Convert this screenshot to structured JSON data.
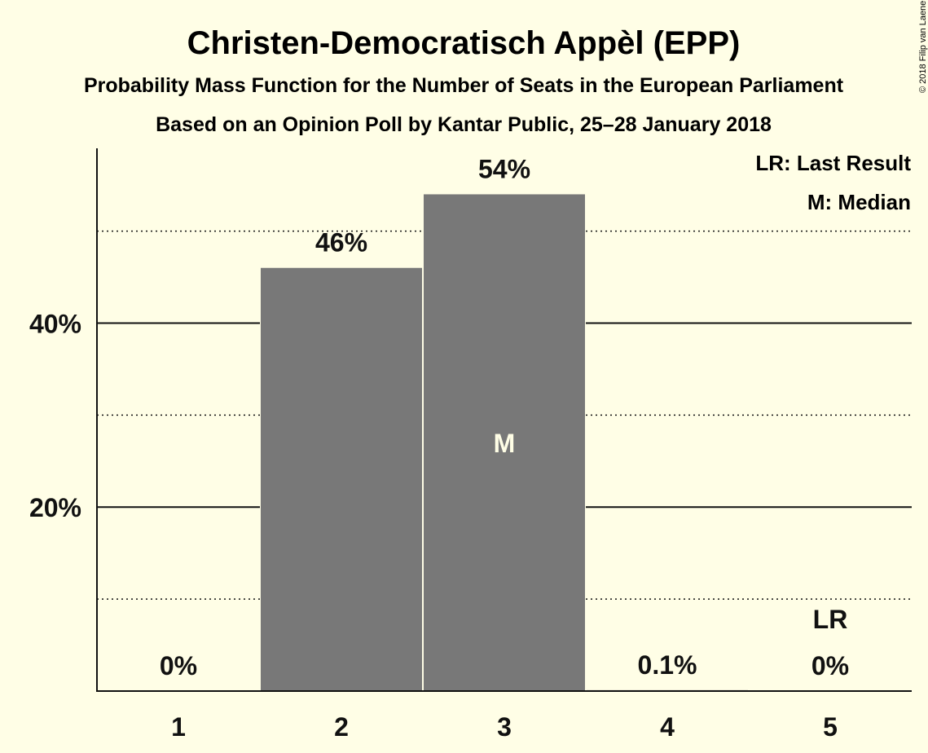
{
  "title": "Christen-Democratisch Appèl (EPP)",
  "subtitle1": "Probability Mass Function for the Number of Seats in the European Parliament",
  "subtitle2": "Based on an Opinion Poll by Kantar Public, 25–28 January 2018",
  "copyright": "© 2018 Filip van Laenen",
  "legend": {
    "last_result": "LR: Last Result",
    "median": "M: Median"
  },
  "colors": {
    "background": "#FFFEE6",
    "bar": "#787878",
    "text": "#111111",
    "median_mark": "#FFFEE6"
  },
  "chart_data": {
    "type": "bar",
    "categories": [
      "1",
      "2",
      "3",
      "4",
      "5"
    ],
    "values": [
      0,
      46,
      54,
      0.1,
      0
    ],
    "value_labels": [
      "0%",
      "46%",
      "54%",
      "0.1%",
      "0%"
    ],
    "ylim": [
      0,
      59
    ],
    "yticks": [
      {
        "value": 20,
        "label": "20%"
      },
      {
        "value": 40,
        "label": "40%"
      }
    ],
    "minor_gridlines": [
      10,
      30,
      50
    ],
    "median_category": "3",
    "median_label": "M",
    "last_result_category": "5",
    "last_result_label": "LR",
    "legend_position": "top-right"
  }
}
